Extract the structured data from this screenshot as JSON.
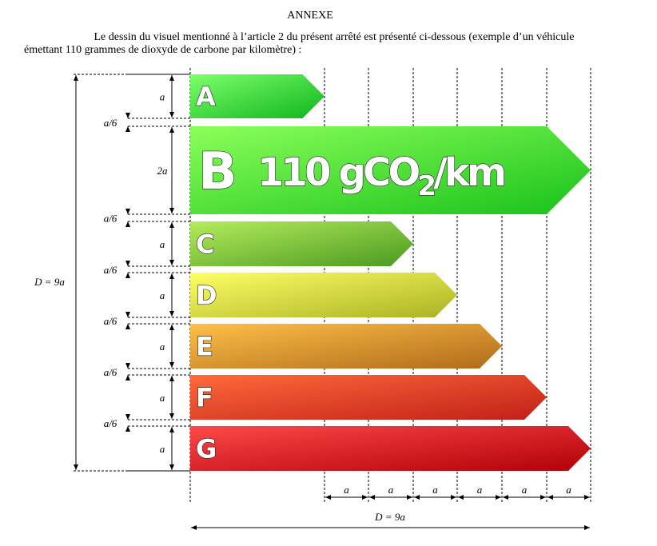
{
  "header": {
    "title": "ANNEXE",
    "lines": [
      "Le dessin du visuel mentionné à l’article 2 du présent arrêté est présenté ci-dessous (exemple d’un véhicule",
      "émettant 110 grammes de dioxyde de carbone par kilomètre) :"
    ]
  },
  "bars": [
    {
      "letter": "A"
    },
    {
      "letter": "B",
      "value": {
        "main": "110 gCO",
        "sub": "2",
        "unit": "/km"
      }
    },
    {
      "letter": "C"
    },
    {
      "letter": "D"
    },
    {
      "letter": "E"
    },
    {
      "letter": "F"
    },
    {
      "letter": "G"
    }
  ],
  "dimensions": {
    "heights": [
      "a",
      "2a",
      "a",
      "a",
      "a",
      "a",
      "a"
    ],
    "gaps": [
      "a/6",
      "a/6",
      "a/6",
      "a/6",
      "a/6",
      "a/6"
    ],
    "left_total": "D = 9a",
    "bottom_units": [
      "a",
      "a",
      "a",
      "a",
      "a",
      "a"
    ],
    "bottom_total": "D = 9a"
  }
}
